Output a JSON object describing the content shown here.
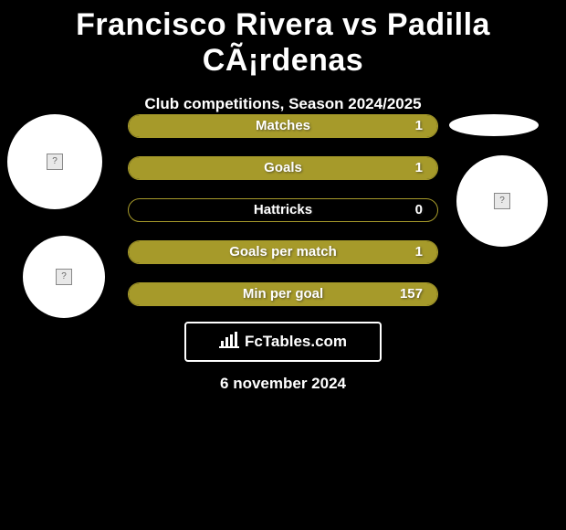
{
  "title": "Francisco Rivera vs Padilla CÃ¡rdenas",
  "subtitle": "Club competitions, Season 2024/2025",
  "date": "6 november 2024",
  "watermark_text": "FcTables.com",
  "colors": {
    "background": "#000000",
    "bar_fill": "#a69a2a",
    "bar_border": "#a69a2a",
    "text": "#ffffff"
  },
  "bars": [
    {
      "label": "Matches",
      "value": "1",
      "fill_pct": 100
    },
    {
      "label": "Goals",
      "value": "1",
      "fill_pct": 100
    },
    {
      "label": "Hattricks",
      "value": "0",
      "fill_pct": 0
    },
    {
      "label": "Goals per match",
      "value": "1",
      "fill_pct": 100
    },
    {
      "label": "Min per goal",
      "value": "157",
      "fill_pct": 100
    }
  ]
}
